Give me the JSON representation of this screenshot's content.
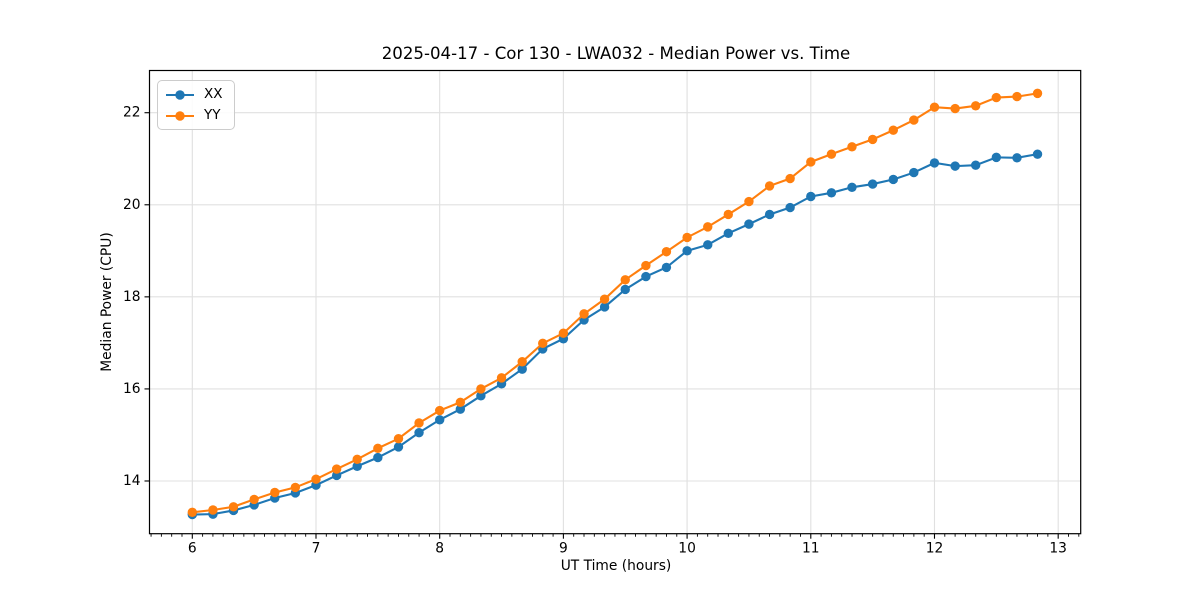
{
  "chart_data": {
    "type": "line",
    "title": "2025-04-17 - Cor 130 - LWA032 - Median Power vs. Time",
    "xlabel": "UT Time (hours)",
    "ylabel": "Median Power (CPU)",
    "xlim": [
      5.654,
      13.182
    ],
    "ylim": [
      12.855,
      22.917
    ],
    "x_ticks": [
      6,
      7,
      8,
      9,
      10,
      11,
      12,
      13
    ],
    "y_ticks": [
      14,
      16,
      18,
      20,
      22
    ],
    "x_minor_divisions": 12,
    "grid": true,
    "grid_color": "#e0e0e0",
    "axis_color": "#000000",
    "legend": {
      "position": "upper left"
    },
    "marker": "circle",
    "x": [
      6.0,
      6.167,
      6.333,
      6.5,
      6.667,
      6.833,
      7.0,
      7.167,
      7.333,
      7.5,
      7.667,
      7.833,
      8.0,
      8.167,
      8.333,
      8.5,
      8.667,
      8.833,
      9.0,
      9.167,
      9.333,
      9.5,
      9.667,
      9.833,
      10.0,
      10.167,
      10.333,
      10.5,
      10.667,
      10.833,
      11.0,
      11.167,
      11.333,
      11.5,
      11.667,
      11.833,
      12.0,
      12.167,
      12.333,
      12.5,
      12.667,
      12.833
    ],
    "series": [
      {
        "name": "XX",
        "color": "#1f77b4",
        "values": [
          13.27,
          13.28,
          13.36,
          13.48,
          13.63,
          13.74,
          13.91,
          14.12,
          14.32,
          14.51,
          14.74,
          15.05,
          15.33,
          15.56,
          15.85,
          16.11,
          16.43,
          16.87,
          17.09,
          17.5,
          17.78,
          18.16,
          18.44,
          18.64,
          19.0,
          19.13,
          19.38,
          19.58,
          19.79,
          19.94,
          20.18,
          20.26,
          20.38,
          20.45,
          20.55,
          20.7,
          20.91,
          20.84,
          20.86,
          21.03,
          21.02,
          21.1
        ]
      },
      {
        "name": "YY",
        "color": "#ff7f0e",
        "values": [
          13.32,
          13.37,
          13.44,
          13.6,
          13.75,
          13.86,
          14.04,
          14.26,
          14.47,
          14.71,
          14.92,
          15.26,
          15.53,
          15.71,
          16.0,
          16.24,
          16.59,
          16.99,
          17.21,
          17.63,
          17.95,
          18.37,
          18.68,
          18.98,
          19.29,
          19.52,
          19.79,
          20.07,
          20.41,
          20.57,
          20.93,
          21.1,
          21.26,
          21.42,
          21.62,
          21.84,
          22.12,
          22.09,
          22.15,
          22.33,
          22.35,
          22.42
        ]
      }
    ]
  }
}
